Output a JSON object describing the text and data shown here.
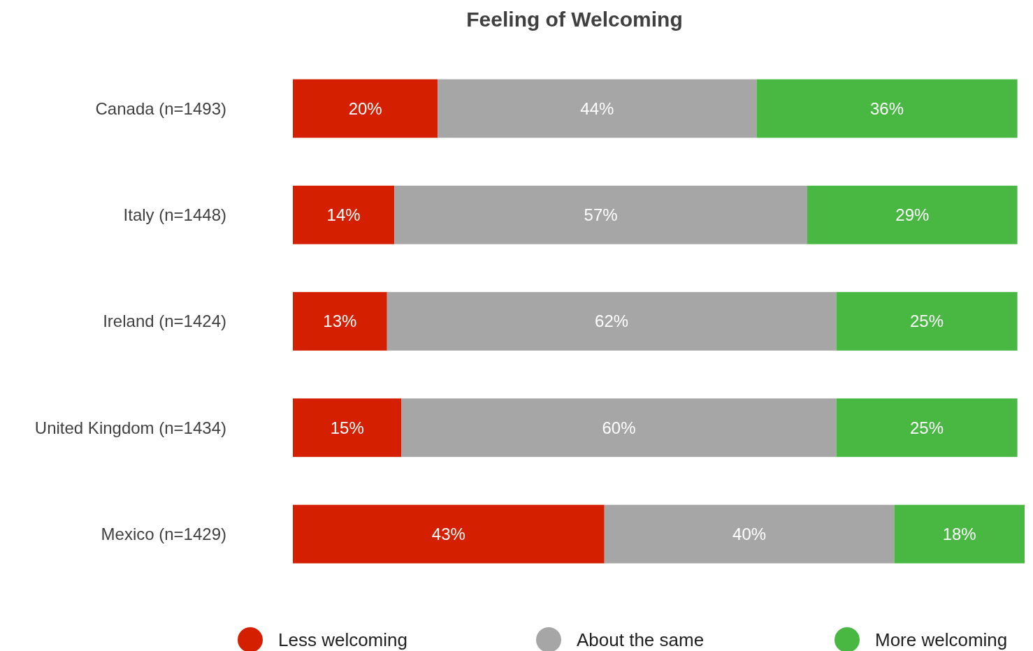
{
  "chart_data": {
    "type": "bar",
    "title": "Feeling of Welcoming",
    "orientation": "horizontal",
    "stacked": true,
    "legend": "bottom",
    "categories": [
      "Canada (n=1493)",
      "Italy (n=1448)",
      "Ireland (n=1424)",
      "United Kingdom (n=1434)",
      "Mexico (n=1429)"
    ],
    "series": [
      {
        "name": "Less welcoming",
        "color": "#d42000",
        "values": [
          20,
          14,
          13,
          15,
          43
        ],
        "value_labels": [
          "20%",
          "14%",
          "13%",
          "15%",
          "43%"
        ]
      },
      {
        "name": "About the same",
        "color": "#a6a6a6",
        "values": [
          44,
          57,
          62,
          60,
          40
        ],
        "value_labels": [
          "44%",
          "57%",
          "62%",
          "60%",
          "40%"
        ]
      },
      {
        "name": "More welcoming",
        "color": "#48b843",
        "values": [
          36,
          29,
          25,
          25,
          18
        ],
        "value_labels": [
          "36%",
          "29%",
          "25%",
          "25%",
          "18%"
        ]
      }
    ]
  }
}
